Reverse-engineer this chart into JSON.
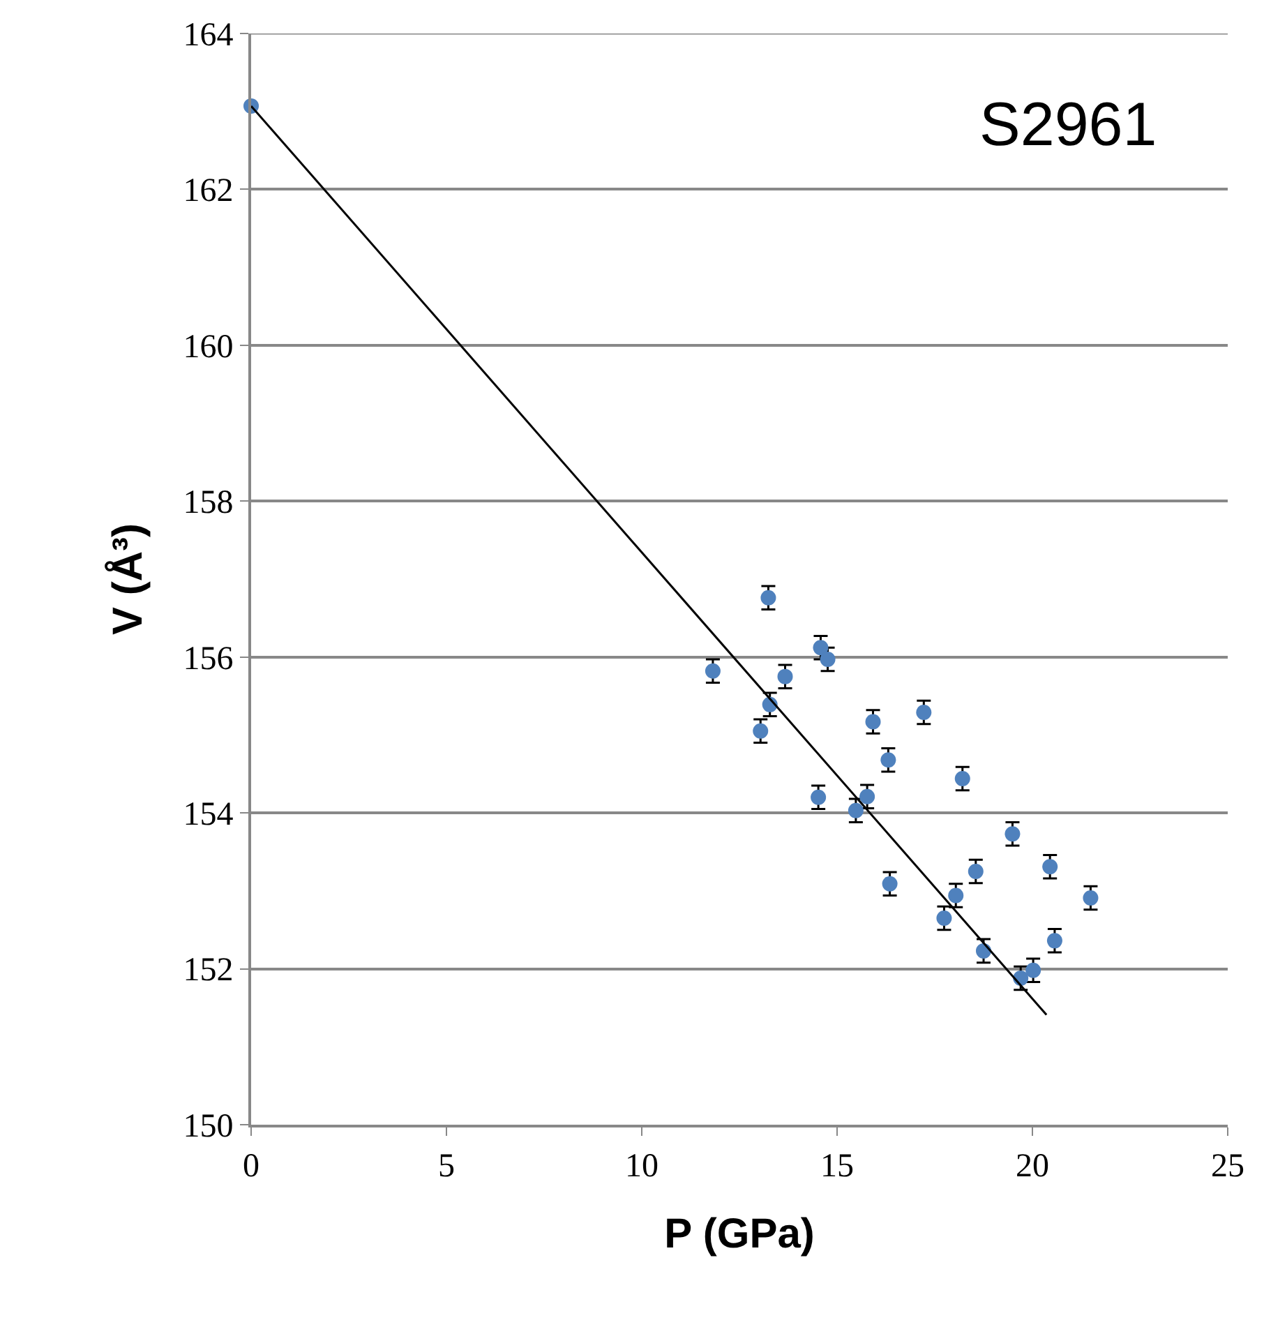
{
  "chart_data": {
    "type": "scatter",
    "xlabel": "P (GPa)",
    "ylabel": "V (Å³)",
    "annotations": [
      "S2961"
    ],
    "xlim": [
      0,
      25
    ],
    "xticks": [
      0,
      5,
      10,
      15,
      20,
      25
    ],
    "ylim": [
      150,
      164
    ],
    "yticks": [
      150,
      152,
      154,
      156,
      158,
      160,
      162,
      164
    ],
    "grid": "y",
    "series": [
      {
        "marker": "circle",
        "color": "#4f81bd",
        "x": [
          0.0,
          11.82,
          13.04,
          13.28,
          13.24,
          13.67,
          14.52,
          14.58,
          14.76,
          15.48,
          15.77,
          15.92,
          16.31,
          16.35,
          17.22,
          17.74,
          18.04,
          18.21,
          18.55,
          18.75,
          19.49,
          19.7,
          20.02,
          20.45,
          20.57,
          21.49
        ],
        "values": [
          163.07,
          155.82,
          155.05,
          155.39,
          156.76,
          155.75,
          154.2,
          156.12,
          155.97,
          154.03,
          154.21,
          155.17,
          154.68,
          153.09,
          155.29,
          152.65,
          152.94,
          154.44,
          153.25,
          152.23,
          153.73,
          151.88,
          151.98,
          153.31,
          152.36,
          152.91
        ],
        "errors": [
          null,
          0.15,
          0.15,
          0.15,
          0.15,
          0.15,
          0.15,
          0.15,
          0.15,
          0.15,
          0.15,
          0.15,
          0.15,
          0.15,
          0.15,
          0.15,
          0.15,
          0.15,
          0.15,
          0.15,
          0.15,
          0.15,
          0.15,
          0.15,
          0.15,
          0.15
        ]
      },
      {
        "type": "line",
        "marker": "none",
        "color": "#000000",
        "x": [
          0.0,
          20.36
        ],
        "values": [
          163.07,
          151.41
        ]
      }
    ]
  }
}
